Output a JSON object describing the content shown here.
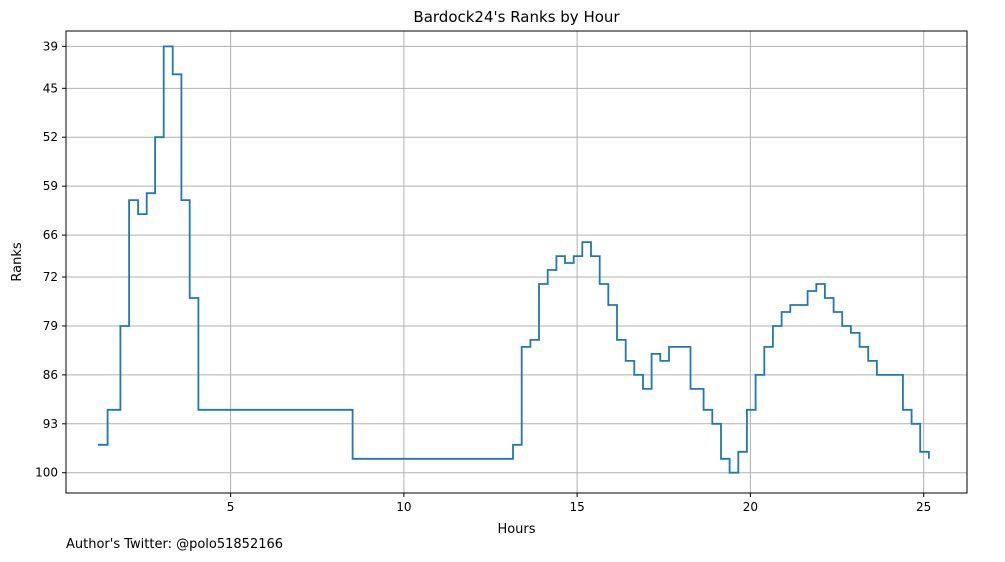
{
  "chart_data": {
    "type": "line",
    "title": "Bardock24's Ranks by Hour",
    "xlabel": "Hours",
    "ylabel": "Ranks",
    "xlim": [
      0.25,
      26.25
    ],
    "ylim": [
      102.9,
      36.8
    ],
    "y_inverted": true,
    "grid": true,
    "step": "post",
    "line_color": "#1f77b4",
    "x_ticks": [
      5,
      10,
      15,
      20,
      25
    ],
    "y_ticks": [
      39,
      45,
      52,
      59,
      66,
      72,
      79,
      86,
      93,
      100
    ],
    "x": [
      1.17,
      1.45,
      1.82,
      2.07,
      2.33,
      2.58,
      2.82,
      3.07,
      3.33,
      3.58,
      3.82,
      4.07,
      8.52,
      12.9,
      13.15,
      13.4,
      13.65,
      13.9,
      14.15,
      14.4,
      14.65,
      14.9,
      15.15,
      15.4,
      15.65,
      15.9,
      16.15,
      16.4,
      16.65,
      16.9,
      17.15,
      17.4,
      17.65,
      18.27,
      18.65,
      18.9,
      19.15,
      19.4,
      19.65,
      19.9,
      20.15,
      20.4,
      20.65,
      20.9,
      21.15,
      21.65,
      21.9,
      22.15,
      22.4,
      22.65,
      22.9,
      23.15,
      23.4,
      23.65,
      24.4,
      24.65,
      24.9,
      25.15
    ],
    "y": [
      96,
      91,
      79,
      61,
      63,
      60,
      52,
      39,
      43,
      61,
      75,
      91,
      98,
      98,
      96,
      82,
      81,
      73,
      71,
      69,
      70,
      69,
      67,
      69,
      73,
      76,
      81,
      84,
      86,
      88,
      83,
      84,
      82,
      88,
      91,
      93,
      98,
      100,
      97,
      91,
      86,
      82,
      79,
      77,
      76,
      74,
      73,
      75,
      77,
      79,
      80,
      82,
      84,
      86,
      91,
      93,
      97,
      98
    ],
    "annotation": "Author's Twitter: @polo51852166"
  }
}
